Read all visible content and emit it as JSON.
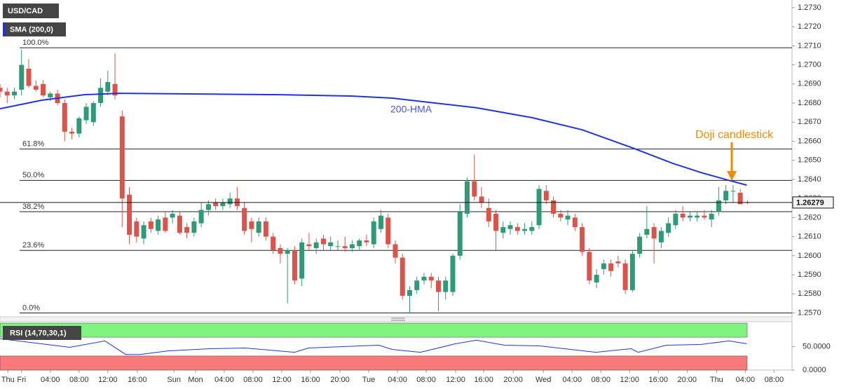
{
  "chart_data": [
    {
      "type": "candlestick",
      "title": "USD/CAD",
      "x": [
        -3,
        -2,
        -1,
        0,
        1,
        2,
        3,
        4,
        5,
        6,
        7,
        8,
        9,
        10,
        11,
        12,
        13,
        14,
        15,
        16,
        17,
        18,
        19,
        20,
        21,
        22,
        23,
        24,
        25,
        26,
        27,
        28,
        29,
        30,
        31,
        32,
        33,
        34,
        35,
        36,
        37,
        38,
        39,
        40,
        41,
        42,
        43,
        44,
        45,
        46,
        47,
        48,
        49,
        50,
        51,
        52,
        53,
        54,
        55,
        56,
        57,
        58,
        59,
        60,
        61,
        62,
        63,
        64,
        65,
        66,
        67,
        68,
        69,
        70,
        71,
        72,
        73,
        74,
        75,
        76,
        77,
        78,
        79,
        80,
        81,
        82,
        83,
        84,
        85,
        86,
        87,
        88,
        89,
        90,
        91,
        92,
        93,
        94,
        95,
        96,
        97,
        98,
        99,
        100,
        101
      ],
      "open": [
        1.2688,
        1.2686,
        1.2684,
        1.2687,
        1.2698,
        1.2689,
        1.269,
        1.2683,
        1.2685,
        1.268,
        1.2665,
        1.2664,
        1.2671,
        1.267,
        1.268,
        1.2686,
        1.269,
        1.2673,
        1.2632,
        1.2618,
        1.2609,
        1.2618,
        1.2613,
        1.262,
        1.262,
        1.2621,
        1.2615,
        1.2612,
        1.2617,
        1.2624,
        1.2628,
        1.2626,
        1.2627,
        1.263,
        1.2625,
        1.2618,
        1.2612,
        1.2618,
        1.261,
        1.2604,
        1.2601,
        1.2603,
        1.2588,
        1.2606,
        1.2604,
        1.2609,
        1.2605,
        1.2605,
        1.2605,
        1.2604,
        1.2605,
        1.2608,
        1.2606,
        1.2614,
        1.262,
        1.2606,
        1.2599,
        1.2579,
        1.2582,
        1.2587,
        1.2589,
        1.2587,
        1.2581,
        1.2581,
        1.26,
        1.2622,
        1.2639,
        1.2631,
        1.2625,
        1.2622,
        1.2612,
        1.2614,
        1.2615,
        1.2613,
        1.2613,
        1.2616,
        1.2634,
        1.2629,
        1.2622,
        1.2619,
        1.262,
        1.2615,
        1.2602,
        1.2586,
        1.2593,
        1.2596,
        1.2597,
        1.2596,
        1.2582,
        1.2601,
        1.2611,
        1.2615,
        1.2607,
        1.2612,
        1.2616,
        1.2622,
        1.262,
        1.262,
        1.2621,
        1.2619,
        1.2623,
        1.2629,
        1.2634,
        1.2633,
        1.2628
      ],
      "high": [
        1.269,
        1.2688,
        1.2688,
        1.2708,
        1.2703,
        1.2692,
        1.2692,
        1.2686,
        1.2687,
        1.2682,
        1.2667,
        1.2673,
        1.268,
        1.2681,
        1.2693,
        1.2697,
        1.2706,
        1.2676,
        1.2636,
        1.262,
        1.2618,
        1.262,
        1.2621,
        1.2623,
        1.2624,
        1.2623,
        1.2617,
        1.262,
        1.2628,
        1.2629,
        1.263,
        1.263,
        1.2633,
        1.2636,
        1.2628,
        1.262,
        1.262,
        1.262,
        1.2612,
        1.2606,
        1.2604,
        1.2605,
        1.2609,
        1.2612,
        1.2609,
        1.2611,
        1.261,
        1.2608,
        1.261,
        1.2608,
        1.2609,
        1.2611,
        1.262,
        1.2624,
        1.2622,
        1.2608,
        1.2601,
        1.2584,
        1.2589,
        1.2591,
        1.2591,
        1.2589,
        1.2589,
        1.2601,
        1.2627,
        1.2641,
        1.2653,
        1.2636,
        1.263,
        1.2624,
        1.2618,
        1.2618,
        1.2617,
        1.2617,
        1.2618,
        1.2637,
        1.2637,
        1.2631,
        1.2624,
        1.2624,
        1.2622,
        1.2617,
        1.2604,
        1.2593,
        1.2598,
        1.2598,
        1.26,
        1.2598,
        1.2603,
        1.2612,
        1.2626,
        1.2617,
        1.2615,
        1.262,
        1.2624,
        1.2626,
        1.2623,
        1.2623,
        1.2624,
        1.2624,
        1.2636,
        1.2637,
        1.2637,
        1.2635,
        1.2629
      ],
      "low": [
        1.2683,
        1.268,
        1.2682,
        1.2684,
        1.2688,
        1.2686,
        1.2683,
        1.2681,
        1.2679,
        1.266,
        1.2661,
        1.2662,
        1.2669,
        1.2668,
        1.2678,
        1.2684,
        1.2682,
        1.2615,
        1.2606,
        1.2607,
        1.2606,
        1.2612,
        1.2611,
        1.2612,
        1.2617,
        1.2611,
        1.2609,
        1.261,
        1.2615,
        1.2621,
        1.2624,
        1.2624,
        1.2625,
        1.2624,
        1.2611,
        1.2607,
        1.261,
        1.2608,
        1.2601,
        1.2596,
        1.2575,
        1.2585,
        1.2584,
        1.2603,
        1.2601,
        1.2603,
        1.2603,
        1.2603,
        1.2602,
        1.2602,
        1.2603,
        1.2605,
        1.2604,
        1.2612,
        1.2604,
        1.2596,
        1.2577,
        1.257,
        1.258,
        1.2585,
        1.2583,
        1.2571,
        1.2577,
        1.2579,
        1.2598,
        1.262,
        1.2629,
        1.2625,
        1.2615,
        1.2603,
        1.2609,
        1.2611,
        1.2611,
        1.2611,
        1.2611,
        1.2614,
        1.2627,
        1.262,
        1.2618,
        1.2616,
        1.2613,
        1.26,
        1.2585,
        1.2583,
        1.259,
        1.2589,
        1.2594,
        1.258,
        1.2581,
        1.2599,
        1.2609,
        1.2596,
        1.2604,
        1.261,
        1.2614,
        1.2618,
        1.2618,
        1.2618,
        1.2619,
        1.2615,
        1.2621,
        1.2627,
        1.2628,
        1.2627,
        1.2627
      ],
      "close": [
        1.2686,
        1.2684,
        1.2686,
        1.27,
        1.2689,
        1.2687,
        1.2684,
        1.2685,
        1.268,
        1.2665,
        1.2664,
        1.2672,
        1.2678,
        1.268,
        1.2688,
        1.2691,
        1.2684,
        1.263,
        1.2611,
        1.261,
        1.2616,
        1.2614,
        1.2619,
        1.2613,
        1.2622,
        1.2612,
        1.2612,
        1.2618,
        1.2624,
        1.2627,
        1.2626,
        1.2628,
        1.263,
        1.2626,
        1.2613,
        1.2614,
        1.2618,
        1.261,
        1.2603,
        1.2601,
        1.2603,
        1.2587,
        1.2607,
        1.2605,
        1.2607,
        1.2606,
        1.2607,
        1.2605,
        1.2604,
        1.2606,
        1.2608,
        1.2607,
        1.2618,
        1.2621,
        1.2606,
        1.2599,
        1.2579,
        1.2582,
        1.2587,
        1.2589,
        1.2587,
        1.2581,
        1.2587,
        1.26,
        1.2623,
        1.2639,
        1.2631,
        1.2628,
        1.2618,
        1.2613,
        1.2615,
        1.2616,
        1.2613,
        1.2614,
        1.2615,
        1.2635,
        1.2629,
        1.2622,
        1.262,
        1.2621,
        1.2615,
        1.2602,
        1.2587,
        1.259,
        1.2596,
        1.2592,
        1.2596,
        1.2582,
        1.2601,
        1.261,
        1.2614,
        1.2609,
        1.2613,
        1.2617,
        1.2622,
        1.262,
        1.2621,
        1.2621,
        1.262,
        1.2622,
        1.2629,
        1.2634,
        1.2634,
        1.2627,
        1.26279
      ],
      "up_color": "#2f9a78",
      "down_color": "#dc5349",
      "series": [
        {
          "name": "SMA (200,0)",
          "color": "#2233dd",
          "x": [
            -3,
            2.8,
            8.7,
            13.6,
            23.3,
            36,
            45.8,
            51.6,
            57.5,
            63.3,
            71.1,
            78,
            84.8,
            90.6,
            94.5,
            98.4,
            100.9
          ],
          "values": [
            1.2677,
            1.26815,
            1.26844,
            1.26851,
            1.26848,
            1.26844,
            1.26837,
            1.26826,
            1.268,
            1.26775,
            1.26723,
            1.2666,
            1.26568,
            1.26484,
            1.26436,
            1.26395,
            1.2637
          ]
        }
      ],
      "annotations": [
        "200-HMA",
        "Doji candlestick"
      ],
      "levels": [
        {
          "label": "100.0%",
          "value": 1.2709
        },
        {
          "label": "61.8%",
          "value": 1.26559
        },
        {
          "label": "50.0%",
          "value": 1.26395
        },
        {
          "label": "38.2%",
          "value": 1.26231
        },
        {
          "label": "23.6%",
          "value": 1.26028
        },
        {
          "label": "0.0%",
          "value": 1.257
        }
      ],
      "last_price": {
        "value": 1.26279,
        "label": "1.26279"
      },
      "xlim": [
        -3,
        107.2
      ],
      "ylim": [
        1.2568,
        1.2734
      ],
      "yticks": [
        {
          "value": 1.257,
          "label": "1.2570"
        },
        {
          "value": 1.258,
          "label": "1.2580"
        },
        {
          "value": 1.259,
          "label": "1.2590"
        },
        {
          "value": 1.26,
          "label": "1.2600"
        },
        {
          "value": 1.261,
          "label": "1.2610"
        },
        {
          "value": 1.262,
          "label": "1.2620"
        },
        {
          "value": 1.263,
          "label": "1.2630"
        },
        {
          "value": 1.264,
          "label": "1.2640"
        },
        {
          "value": 1.265,
          "label": "1.2650"
        },
        {
          "value": 1.266,
          "label": "1.2660"
        },
        {
          "value": 1.267,
          "label": "1.2670"
        },
        {
          "value": 1.268,
          "label": "1.2680"
        },
        {
          "value": 1.269,
          "label": "1.2690"
        },
        {
          "value": 1.27,
          "label": "1.2700"
        },
        {
          "value": 1.271,
          "label": "1.2710"
        },
        {
          "value": 1.272,
          "label": "1.2720"
        },
        {
          "value": 1.273,
          "label": "1.2730"
        }
      ],
      "xticks": [
        {
          "value": -1.9,
          "label": "Thu"
        },
        {
          "value": 0,
          "label": "Fri"
        },
        {
          "value": 4,
          "label": "04:00"
        },
        {
          "value": 8,
          "label": "08:00"
        },
        {
          "value": 12,
          "label": "12:00"
        },
        {
          "value": 16.1,
          "label": "16:00"
        },
        {
          "value": 21.2,
          "label": "Sun"
        },
        {
          "value": 24.2,
          "label": "Mon"
        },
        {
          "value": 28.2,
          "label": "04:00"
        },
        {
          "value": 32.2,
          "label": "08:00"
        },
        {
          "value": 36.2,
          "label": "12:00"
        },
        {
          "value": 40.2,
          "label": "16:00"
        },
        {
          "value": 44.3,
          "label": "20:00"
        },
        {
          "value": 48.3,
          "label": "Tue"
        },
        {
          "value": 52.3,
          "label": "04:00"
        },
        {
          "value": 56.3,
          "label": "08:00"
        },
        {
          "value": 60.4,
          "label": "12:00"
        },
        {
          "value": 64.3,
          "label": "16:00"
        },
        {
          "value": 68.4,
          "label": "20:00"
        },
        {
          "value": 72.6,
          "label": "Wed"
        },
        {
          "value": 76.6,
          "label": "04:00"
        },
        {
          "value": 80.6,
          "label": "08:00"
        },
        {
          "value": 84.6,
          "label": "12:00"
        },
        {
          "value": 88.6,
          "label": "16:00"
        },
        {
          "value": 92.6,
          "label": "20:00"
        },
        {
          "value": 96.7,
          "label": "Thu"
        },
        {
          "value": 100.7,
          "label": "04:00"
        },
        {
          "value": 104.7,
          "label": "08:00"
        }
      ],
      "grid": false
    },
    {
      "type": "line",
      "title": "RSI (14,70,30,1)",
      "series": [
        {
          "color": "#2233dd",
          "x": [
            -3,
            6.7,
            11.6,
            14.5,
            16.5,
            20.4,
            26.2,
            31.1,
            38,
            39.9,
            49.7,
            51.6,
            55.5,
            60.4,
            63.3,
            67.2,
            72.1,
            79.9,
            84.8,
            85.8,
            89.7,
            94.5,
            98.4,
            100.9
          ],
          "values": [
            66.7,
            48.5,
            62.1,
            33.3,
            33.3,
            40.9,
            45.5,
            47,
            37.9,
            47,
            53,
            43.9,
            37.9,
            56.1,
            63.6,
            53,
            51.5,
            37.9,
            45.5,
            37.9,
            53,
            54.5,
            62.1,
            56.1
          ]
        }
      ],
      "bands": [
        {
          "from": 70,
          "to": 100,
          "color": "#7ef47e"
        },
        {
          "from": 0,
          "to": 30,
          "color": "#f77a7a"
        }
      ],
      "xlim": [
        -3,
        107.2
      ],
      "ylim": [
        0,
        100
      ],
      "yticks": [
        {
          "value": 50,
          "label": "50.0000"
        },
        {
          "value": 0,
          "label": "0.0000"
        }
      ]
    }
  ]
}
